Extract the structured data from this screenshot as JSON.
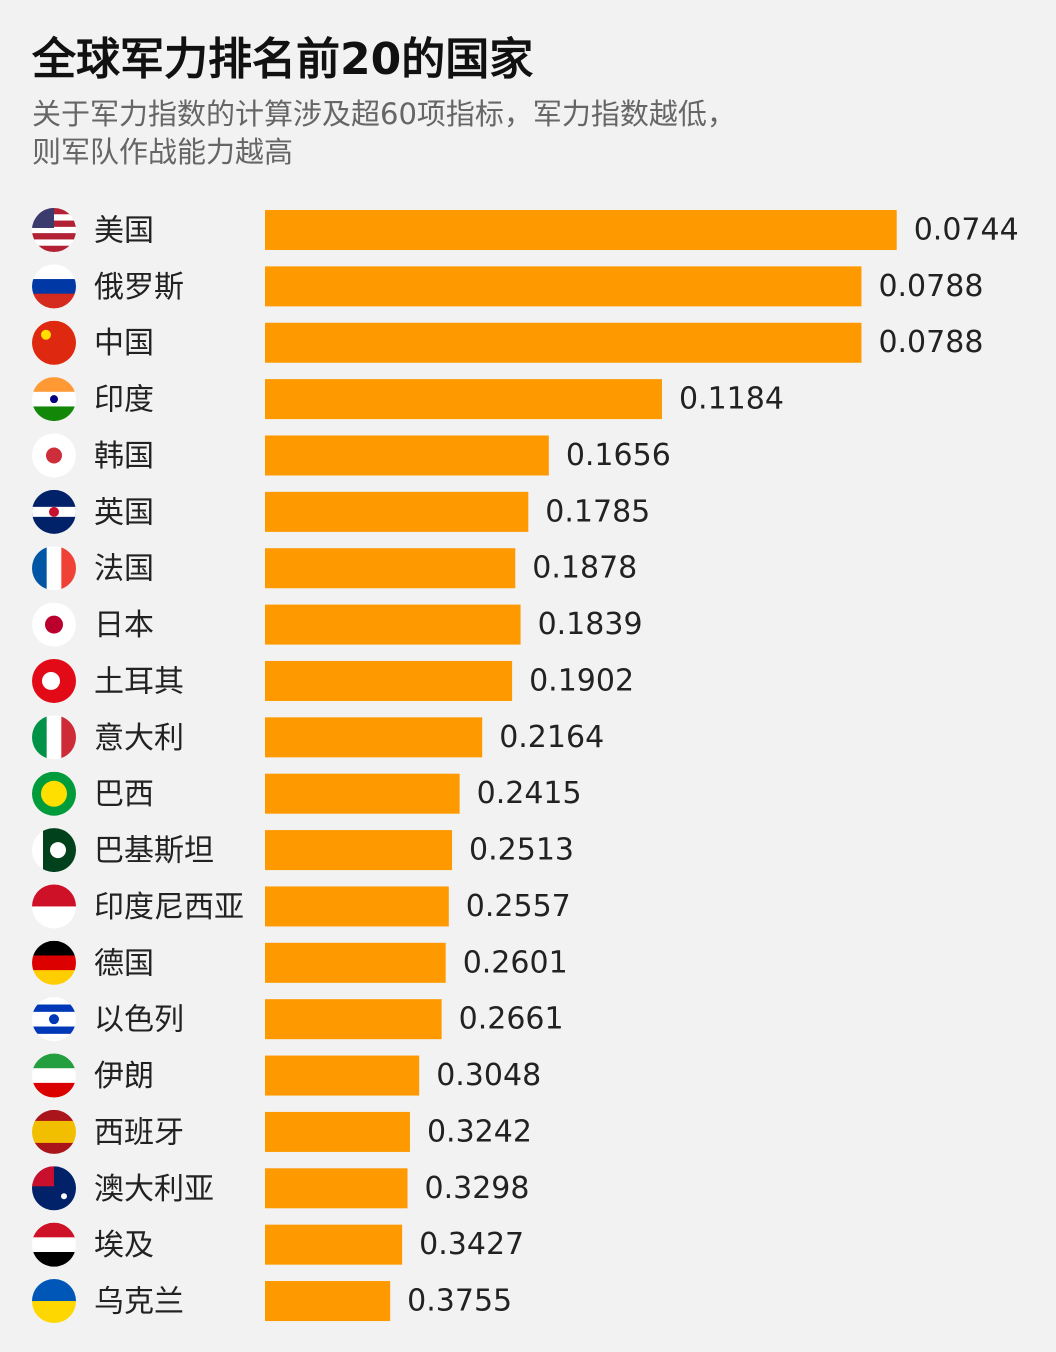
{
  "chart_data": {
    "type": "bar",
    "orientation": "horizontal",
    "scale": "inverse",
    "title": "全球军力排名前20的国家",
    "subtitle": [
      "关于军力指数的计算涉及超60项指标，军力指数越低，",
      "则军队作战能力越高"
    ],
    "color": "#ff9900",
    "categories": [
      "美国",
      "俄罗斯",
      "中国",
      "印度",
      "韩国",
      "英国",
      "法国",
      "日本",
      "土耳其",
      "意大利",
      "巴西",
      "巴基斯坦",
      "印度尼西亚",
      "德国",
      "以色列",
      "伊朗",
      "西班牙",
      "澳大利亚",
      "埃及",
      "乌克兰"
    ],
    "values": [
      0.0744,
      0.0788,
      0.0788,
      0.1184,
      0.1656,
      0.1785,
      0.1878,
      0.1839,
      0.1902,
      0.2164,
      0.2415,
      0.2513,
      0.2557,
      0.2601,
      0.2661,
      0.3048,
      0.3242,
      0.3298,
      0.3427,
      0.3755
    ]
  }
}
